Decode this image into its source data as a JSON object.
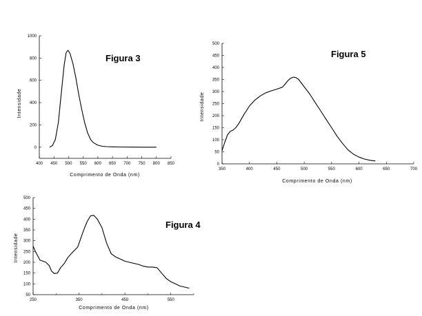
{
  "chart_data": [
    {
      "type": "line",
      "title": "Figura 3",
      "xlabel": "Comprimento de Onda (nm)",
      "ylabel": "Intensidade",
      "xlim": [
        400,
        850
      ],
      "ylim": [
        -100,
        1000
      ],
      "xticks": [
        400,
        450,
        500,
        550,
        600,
        650,
        700,
        750,
        800,
        850
      ],
      "yticks": [
        0,
        200,
        400,
        600,
        800,
        1000
      ],
      "grid": false,
      "series": [
        {
          "x": [
            435,
            445,
            455,
            465,
            475,
            485,
            492,
            498,
            505,
            515,
            525,
            535,
            545,
            555,
            565,
            575,
            585,
            600,
            615,
            630,
            650,
            680,
            720,
            760,
            800
          ],
          "y": [
            0,
            15,
            70,
            220,
            480,
            740,
            850,
            870,
            840,
            750,
            620,
            470,
            340,
            220,
            130,
            70,
            40,
            18,
            8,
            5,
            3,
            2,
            1,
            0,
            0
          ]
        }
      ]
    },
    {
      "type": "line",
      "title": "Figura 5",
      "xlabel": "Comprimento de Onda (nm)",
      "ylabel": "Intensidade",
      "xlim": [
        350,
        700
      ],
      "ylim": [
        0,
        500
      ],
      "xticks": [
        350,
        400,
        450,
        500,
        550,
        600,
        650,
        700
      ],
      "yticks": [
        0,
        50,
        100,
        150,
        200,
        250,
        300,
        350,
        400,
        450,
        500
      ],
      "grid": false,
      "series": [
        {
          "x": [
            350,
            355,
            360,
            365,
            370,
            375,
            380,
            390,
            400,
            410,
            420,
            430,
            440,
            450,
            460,
            465,
            470,
            475,
            480,
            485,
            490,
            500,
            510,
            520,
            530,
            540,
            550,
            560,
            570,
            580,
            590,
            600,
            610,
            620,
            630
          ],
          "y": [
            55,
            90,
            120,
            135,
            140,
            150,
            165,
            205,
            240,
            265,
            282,
            295,
            303,
            310,
            318,
            330,
            345,
            355,
            360,
            358,
            350,
            320,
            290,
            255,
            220,
            185,
            150,
            115,
            85,
            58,
            40,
            28,
            20,
            15,
            12
          ]
        }
      ]
    },
    {
      "type": "line",
      "title": "Figura 4",
      "xlabel": "Comprimento de Onda (nm)",
      "ylabel": "Intensidade",
      "xlim": [
        250,
        600
      ],
      "ylim": [
        50,
        500
      ],
      "xticks": [
        250,
        350,
        450,
        550
      ],
      "xticks_minor": [
        300,
        400,
        500,
        600
      ],
      "yticks": [
        50,
        100,
        150,
        200,
        250,
        300,
        350,
        400,
        450,
        500
      ],
      "grid": false,
      "series": [
        {
          "x": [
            250,
            255,
            260,
            265,
            272,
            278,
            285,
            290,
            296,
            303,
            310,
            318,
            325,
            333,
            340,
            347,
            352,
            357,
            362,
            368,
            375,
            382,
            390,
            400,
            410,
            420,
            430,
            440,
            450,
            460,
            470,
            480,
            490,
            500,
            510,
            520,
            530,
            540,
            550,
            560,
            570,
            580,
            590
          ],
          "y": [
            275,
            250,
            230,
            210,
            205,
            200,
            185,
            160,
            148,
            150,
            175,
            195,
            220,
            240,
            255,
            270,
            300,
            330,
            360,
            390,
            415,
            418,
            400,
            360,
            290,
            240,
            225,
            215,
            205,
            200,
            195,
            190,
            182,
            178,
            178,
            175,
            150,
            125,
            110,
            100,
            90,
            85,
            80
          ]
        }
      ]
    }
  ]
}
